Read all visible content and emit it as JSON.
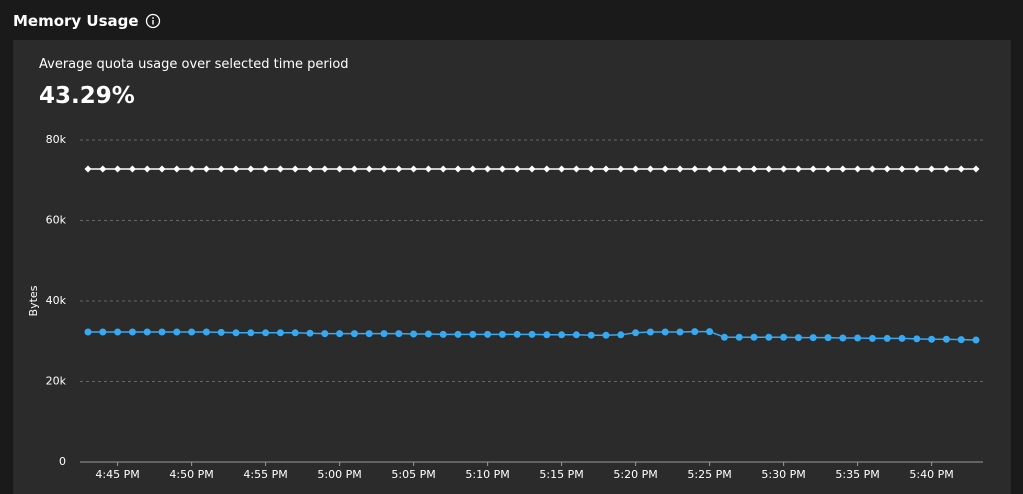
{
  "header": {
    "title": "Memory Usage"
  },
  "summary": {
    "label": "Average quota usage over selected time period",
    "value": "43.29%"
  },
  "chart_data": {
    "type": "line",
    "y_label": "Bytes",
    "categories": [
      null,
      null,
      "4:45 PM",
      null,
      null,
      null,
      null,
      "4:50 PM",
      null,
      null,
      null,
      null,
      "4:55 PM",
      null,
      null,
      null,
      null,
      "5:00 PM",
      null,
      null,
      null,
      null,
      "5:05 PM",
      null,
      null,
      null,
      null,
      "5:10 PM",
      null,
      null,
      null,
      null,
      "5:15 PM",
      null,
      null,
      null,
      null,
      "5:20 PM",
      null,
      null,
      null,
      null,
      "5:25 PM",
      null,
      null,
      null,
      null,
      "5:30 PM",
      null,
      null,
      null,
      null,
      "5:35 PM",
      null,
      null,
      null,
      null,
      "5:40 PM",
      null,
      null,
      null
    ],
    "series": [
      {
        "color": "#ffffff",
        "marker": "diamond",
        "values": [
          72800,
          72800,
          72800,
          72800,
          72800,
          72800,
          72800,
          72800,
          72800,
          72800,
          72800,
          72800,
          72800,
          72800,
          72800,
          72800,
          72800,
          72800,
          72800,
          72800,
          72800,
          72800,
          72800,
          72800,
          72800,
          72800,
          72800,
          72800,
          72800,
          72800,
          72800,
          72800,
          72800,
          72800,
          72800,
          72800,
          72800,
          72800,
          72800,
          72800,
          72800,
          72800,
          72800,
          72800,
          72800,
          72800,
          72800,
          72800,
          72800,
          72800,
          72800,
          72800,
          72800,
          72800,
          72800,
          72800,
          72800,
          72800,
          72800,
          72800,
          72800
        ]
      },
      {
        "color": "#36a9f2",
        "marker": "circle",
        "values": [
          32300,
          32300,
          32300,
          32300,
          32300,
          32300,
          32300,
          32300,
          32300,
          32200,
          32100,
          32100,
          32100,
          32100,
          32100,
          32000,
          31900,
          31900,
          31900,
          31900,
          31900,
          31900,
          31800,
          31800,
          31700,
          31700,
          31700,
          31700,
          31700,
          31700,
          31700,
          31600,
          31600,
          31600,
          31500,
          31500,
          31600,
          32100,
          32300,
          32300,
          32300,
          32400,
          32400,
          31000,
          31000,
          31000,
          31000,
          31000,
          30900,
          30900,
          30900,
          30800,
          30800,
          30700,
          30700,
          30700,
          30600,
          30500,
          30500,
          30400,
          30300
        ]
      }
    ],
    "ylim": [
      0,
      80000
    ],
    "yticks": [
      0,
      {
        "value": 20000,
        "label": "20k"
      },
      {
        "value": 40000,
        "label": "40k"
      },
      {
        "value": 60000,
        "label": "60k"
      },
      {
        "value": 80000,
        "label": "80k"
      }
    ],
    "grid": true
  }
}
